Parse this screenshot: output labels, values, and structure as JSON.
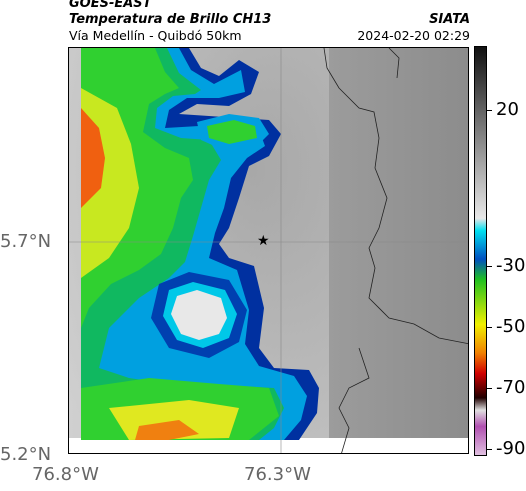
{
  "header": {
    "line1": "GOES-EAST",
    "line2": "Temperatura de Brillo CH13",
    "agency": "SIATA",
    "subtitle": "Vía Medellín - Quibdó 50km",
    "datetime": "2024-02-20 02:29"
  },
  "map": {
    "lat_ticks": [
      "5.7°N",
      "5.2°N"
    ],
    "lon_ticks": [
      "76.8°W",
      "76.3°W"
    ],
    "extent": {
      "lon_min": -76.8,
      "lon_max": -75.8,
      "lat_min": 5.2,
      "lat_max": 6.2
    },
    "marker": {
      "symbol": "★",
      "lon": -76.33,
      "lat": 5.7
    },
    "gridlines": {
      "lon": -76.3,
      "lat": 5.7
    }
  },
  "colorbar": {
    "ticks": [
      "20",
      "-30",
      "-50",
      "-70",
      "-90"
    ],
    "tick_values": [
      20,
      -30,
      -50,
      -70,
      -90
    ],
    "range": [
      -95,
      35
    ],
    "colors": {
      "warm_top": "#1a1a1a",
      "warm_mid": "#9a9a9a",
      "warm_low": "#f5f5f5",
      "cyan": "#00d8ee",
      "blue": "#0040b0",
      "green": "#20c030",
      "yellow": "#f0f000",
      "orange": "#f07000",
      "red": "#d00000",
      "dark": "#200000",
      "magenta": "#b050b0"
    }
  }
}
